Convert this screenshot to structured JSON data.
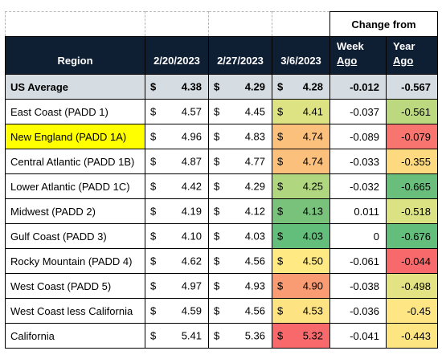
{
  "header": {
    "change_from": "Change from",
    "region": "Region",
    "dates": [
      "2/20/2023",
      "2/27/2023",
      "3/6/2023"
    ],
    "week_ago": [
      "Week",
      "Ago"
    ],
    "year_ago": [
      "Year",
      "Ago"
    ]
  },
  "currency_symbol": "$",
  "rows": [
    {
      "region": "US Average",
      "p1": "4.38",
      "p2": "4.29",
      "p3": "4.28",
      "week": "-0.012",
      "year": "-0.567",
      "p3_color": "#d5dde3",
      "year_color": "#d5dde3"
    },
    {
      "region": "East Coast (PADD 1)",
      "p1": "4.57",
      "p2": "4.45",
      "p3": "4.41",
      "week": "-0.037",
      "year": "-0.561",
      "p3_color": "#dde283",
      "year_color": "#bcd980"
    },
    {
      "region": "New England (PADD 1A)",
      "p1": "4.96",
      "p2": "4.83",
      "p3": "4.74",
      "week": "-0.089",
      "year": "-0.079",
      "p3_color": "#fbc07c",
      "year_color": "#f8746e",
      "highlight": "#ffff00"
    },
    {
      "region": "Central Atlantic (PADD 1B)",
      "p1": "4.87",
      "p2": "4.77",
      "p3": "4.74",
      "week": "-0.033",
      "year": "-0.355",
      "p3_color": "#fbc07c",
      "year_color": "#fdd97f"
    },
    {
      "region": "Lower Atlantic (PADD 1C)",
      "p1": "4.42",
      "p2": "4.29",
      "p3": "4.25",
      "week": "-0.032",
      "year": "-0.665",
      "p3_color": "#b0d780",
      "year_color": "#6abe7b"
    },
    {
      "region": "Midwest (PADD 2)",
      "p1": "4.19",
      "p2": "4.12",
      "p3": "4.13",
      "week": "0.011",
      "year": "-0.518",
      "p3_color": "#79c27c",
      "year_color": "#dae283"
    },
    {
      "region": "Gulf Coast (PADD 3)",
      "p1": "4.10",
      "p2": "4.03",
      "p3": "4.03",
      "week": "0",
      "year": "-0.676",
      "p3_color": "#63be7b",
      "year_color": "#63be7b"
    },
    {
      "region": "Rocky Mountain (PADD 4)",
      "p1": "4.62",
      "p2": "4.56",
      "p3": "4.50",
      "week": "-0.061",
      "year": "-0.044",
      "p3_color": "#fee983",
      "year_color": "#f8696b"
    },
    {
      "region": "West Coast (PADD 5)",
      "p1": "4.97",
      "p2": "4.93",
      "p3": "4.90",
      "week": "-0.038",
      "year": "-0.498",
      "p3_color": "#fa9c73",
      "year_color": "#e3e383"
    },
    {
      "region": "West Coast less California",
      "p1": "4.59",
      "p2": "4.56",
      "p3": "4.53",
      "week": "-0.036",
      "year": "-0.45",
      "p3_color": "#fde382",
      "year_color": "#fde683"
    },
    {
      "region": "California",
      "p1": "5.41",
      "p2": "5.36",
      "p3": "5.32",
      "week": "-0.041",
      "year": "-0.443",
      "p3_color": "#f8696b",
      "year_color": "#fde582"
    }
  ]
}
